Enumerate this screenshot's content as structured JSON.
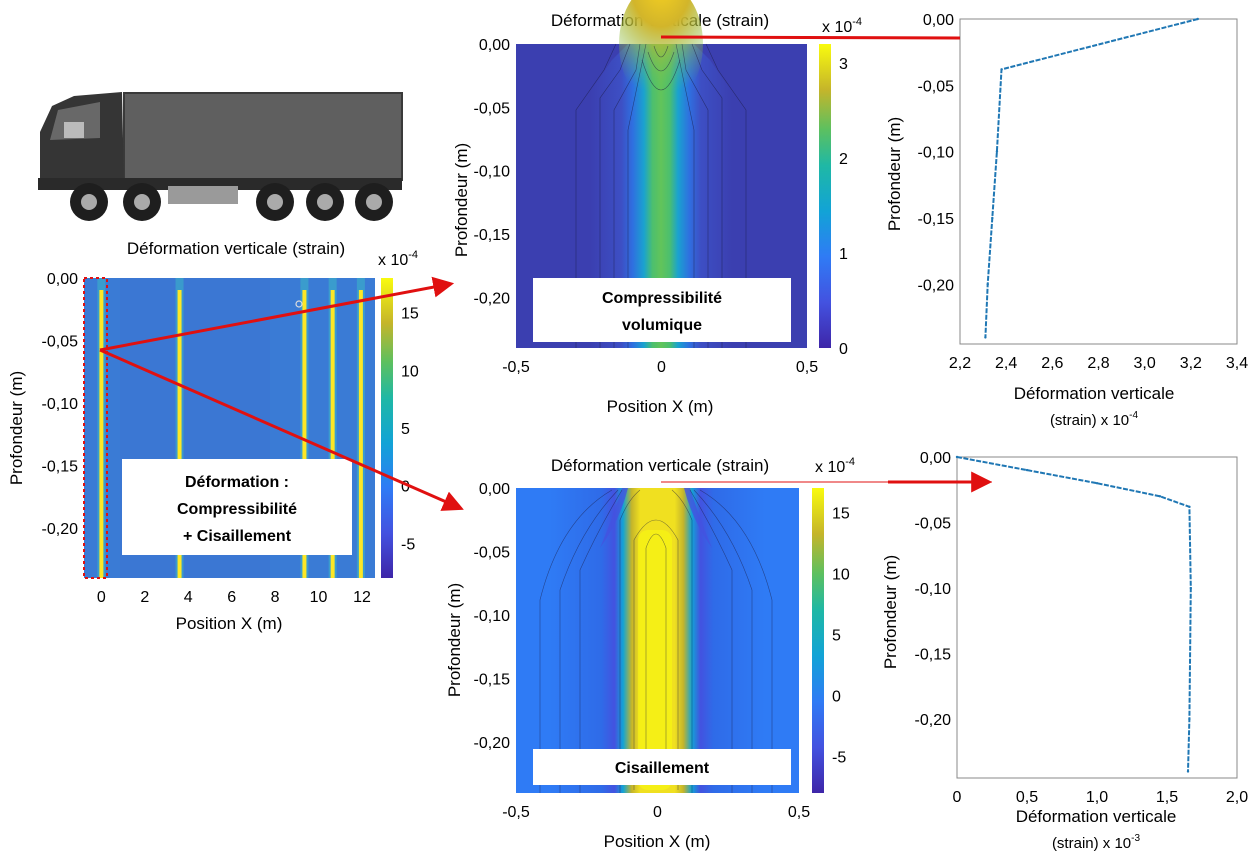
{
  "colors": {
    "arrow": "#e01010",
    "profile_line": "#1f77b4",
    "field_background": "#3a7bd5",
    "high_strain": "#fde725",
    "low_strain": "#440154"
  },
  "truck": {
    "icon": "truck-icon"
  },
  "chart_data": [
    {
      "id": "full",
      "type": "heatmap",
      "title": "Déformation verticale (strain)",
      "multiplier": "x 10",
      "multiplier_exp": "-4",
      "xlabel": "Position X (m)",
      "ylabel": "Profondeur (m)",
      "xlim": [
        -0.8,
        12.6
      ],
      "ylim": [
        -0.24,
        0.0
      ],
      "xticks": [
        "0",
        "2",
        "4",
        "6",
        "8",
        "10",
        "12"
      ],
      "yticks": [
        "0,00",
        "-0,05",
        "-0,10",
        "-0,15",
        "-0,20"
      ],
      "colorbar_range": [
        -8,
        18
      ],
      "colorbar_ticks": [
        "15",
        "10",
        "5",
        "0",
        "-5"
      ],
      "wheel_positions_x": [
        0,
        3.6,
        9.35,
        10.65,
        11.95
      ],
      "annotation": [
        "Déformation :",
        "Compressibilité",
        "+ Cisaillement"
      ]
    },
    {
      "id": "compress",
      "type": "heatmap",
      "title": "Déformation verticale (strain)",
      "multiplier": "x 10",
      "multiplier_exp": "-4",
      "xlabel": "Position X (m)",
      "ylabel": "Profondeur (m)",
      "xlim": [
        -0.5,
        0.5
      ],
      "ylim": [
        -0.24,
        0.0
      ],
      "xticks": [
        "-0,5",
        "0",
        "0,5"
      ],
      "yticks": [
        "0,00",
        "-0,05",
        "-0,10",
        "-0,15",
        "-0,20"
      ],
      "colorbar_range": [
        0,
        3.2
      ],
      "colorbar_ticks": [
        "3",
        "2",
        "1",
        "0"
      ],
      "annotation": [
        "Compressibilité",
        "volumique"
      ]
    },
    {
      "id": "shear",
      "type": "heatmap",
      "title": "Déformation verticale (strain)",
      "multiplier": "x 10",
      "multiplier_exp": "-4",
      "xlabel": "Position X (m)",
      "ylabel": "Profondeur (m)",
      "xlim": [
        -0.5,
        0.5
      ],
      "ylim": [
        -0.24,
        0.0
      ],
      "xticks": [
        "-0,5",
        "0",
        "0,5"
      ],
      "yticks": [
        "0,00",
        "-0,05",
        "-0,10",
        "-0,15",
        "-0,20"
      ],
      "colorbar_range": [
        -8,
        17
      ],
      "colorbar_ticks": [
        "15",
        "10",
        "5",
        "0",
        "-5"
      ],
      "annotation": [
        "Cisaillement"
      ]
    },
    {
      "id": "profile_compress",
      "type": "line",
      "xlabel": "Déformation verticale",
      "xlabel2": "(strain) x 10",
      "xlabel2_exp": "-4",
      "ylabel": "Profondeur (m)",
      "xlim": [
        2.2,
        3.4
      ],
      "ylim": [
        -0.245,
        0.0
      ],
      "xticks": [
        "2,2",
        "2,4",
        "2,6",
        "2,8",
        "3,0",
        "3,2",
        "3,4"
      ],
      "yticks": [
        "0,00",
        "-0,05",
        "-0,10",
        "-0,15",
        "-0,20"
      ],
      "x": [
        3.23,
        2.38,
        2.36,
        2.34,
        2.32,
        2.31
      ],
      "y": [
        0.0,
        -0.038,
        -0.1,
        -0.15,
        -0.2,
        -0.24
      ]
    },
    {
      "id": "profile_shear",
      "type": "line",
      "xlabel": "Déformation verticale",
      "xlabel2": "(strain) x 10",
      "xlabel2_exp": "-3",
      "ylabel": "Profondeur (m)",
      "xlim": [
        0,
        2.0
      ],
      "ylim": [
        -0.245,
        0.0
      ],
      "xticks": [
        "0",
        "0,5",
        "1,0",
        "1,5",
        "2,0"
      ],
      "yticks": [
        "0,00",
        "-0,05",
        "-0,10",
        "-0,15",
        "-0,20"
      ],
      "x": [
        0.0,
        0.5,
        1.0,
        1.45,
        1.66,
        1.67,
        1.66,
        1.65
      ],
      "y": [
        0.0,
        -0.01,
        -0.02,
        -0.03,
        -0.038,
        -0.1,
        -0.2,
        -0.24
      ]
    }
  ]
}
